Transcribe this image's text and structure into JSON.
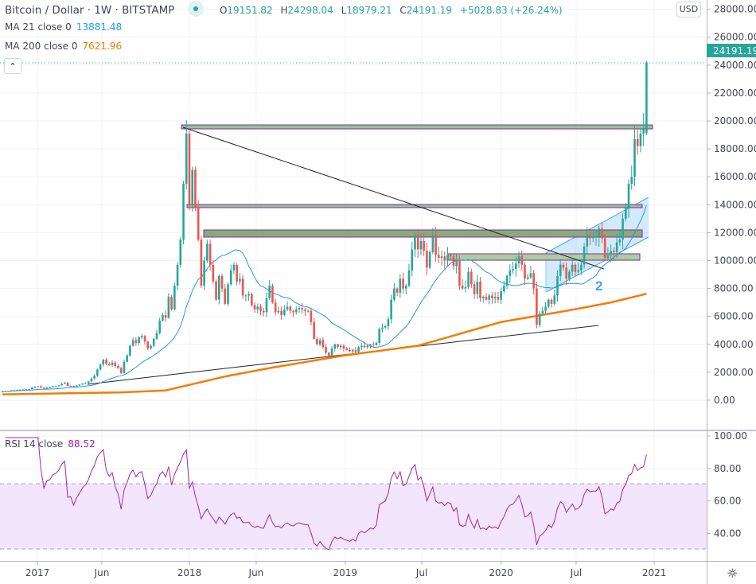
{
  "header": {
    "symbol": "Bitcoin / Dollar · 1W · BITSTAMP",
    "open_label": "O",
    "open": "19151.82",
    "high_label": "H",
    "high": "24298.04",
    "low_label": "L",
    "low": "18979.21",
    "close_label": "C",
    "close": "24191.19",
    "change": "+5028.83 (+26.24%)"
  },
  "indicators": {
    "ma21": {
      "label": "MA 21 close 0",
      "value": "13881.48",
      "color": "#2196f3"
    },
    "ma200": {
      "label": "MA 200 close 0",
      "value": "7621.96",
      "color": "#f57c00"
    },
    "rsi": {
      "label": "RSI 14 close",
      "value": "88.52",
      "color": "#9c27b0"
    }
  },
  "currency_button": "USD",
  "collapse_icon": "chevron-up-icon",
  "settings_icon": "gear-icon",
  "chart_data": {
    "type": "candlestick",
    "title": "Bitcoin / Dollar 1W BITSTAMP",
    "interval": "1W",
    "ylim": [
      -1000,
      29000
    ],
    "yticks": [
      "0.00",
      "2000.00",
      "4000.00",
      "6000.00",
      "8000.00",
      "10000.00",
      "12000.00",
      "14000.00",
      "16000.00",
      "18000.00",
      "20000.00",
      "22000.00",
      "24000.00",
      "26000.00",
      "28000.00"
    ],
    "last_price_label": "24191.19",
    "xticks": [
      {
        "label": "2017",
        "week": 11.8
      },
      {
        "label": "Jun",
        "week": 33.5
      },
      {
        "label": "2018",
        "week": 63
      },
      {
        "label": "Jun",
        "week": 85.5
      },
      {
        "label": "2019",
        "week": 115.5
      },
      {
        "label": "Jul",
        "week": 141.3
      },
      {
        "label": "2020",
        "week": 168
      },
      {
        "label": "Jul",
        "week": 193.3
      },
      {
        "label": "2021",
        "week": 219.6
      }
    ],
    "last_candle": {
      "open": 19151.82,
      "high": 24298.04,
      "low": 18979.21,
      "close": 24191.19
    },
    "closes": [
      620,
      640,
      650,
      700,
      715,
      740,
      745,
      770,
      780,
      790,
      900,
      960,
      1000,
      900,
      820,
      910,
      920,
      990,
      1010,
      1060,
      1180,
      1250,
      1020,
      1030,
      960,
      1050,
      1120,
      1200,
      1250,
      1350,
      1550,
      1750,
      2200,
      2550,
      2900,
      2600,
      2500,
      2700,
      2450,
      2300,
      1950,
      2750,
      3200,
      3900,
      4300,
      4100,
      4500,
      4600,
      4200,
      3700,
      3900,
      4400,
      4800,
      5700,
      6100,
      5900,
      7400,
      6500,
      8200,
      9700,
      11500,
      15500,
      19100,
      14000,
      16500,
      13800,
      11500,
      8200,
      10000,
      11200,
      9700,
      8500,
      7200,
      8900,
      8000,
      6900,
      8300,
      9300,
      9700,
      8500,
      8700,
      7500,
      7500,
      7600,
      6800,
      6500,
      6700,
      6400,
      6300,
      7300,
      8200,
      7000,
      6300,
      6400,
      6100,
      6500,
      6700,
      6400,
      6300,
      6500,
      6600,
      6500,
      6400,
      6400,
      5600,
      4400,
      4000,
      4300,
      3800,
      3400,
      3200,
      3700,
      4000,
      3800,
      3900,
      3700,
      3600,
      3500,
      3600,
      3450,
      3800,
      3900,
      3800,
      3900,
      4000,
      3950,
      4100,
      5100,
      5200,
      5300,
      5800,
      7200,
      8000,
      7700,
      8700,
      8000,
      8200,
      9300,
      10800,
      11800,
      10800,
      11400,
      10700,
      9500,
      10600,
      11800,
      10400,
      10200,
      10300,
      10000,
      10400,
      10300,
      9600,
      10000,
      8200,
      8000,
      8100,
      9200,
      8300,
      7600,
      8500,
      7300,
      7400,
      7200,
      7500,
      7300,
      7400,
      7200,
      7800,
      8200,
      8900,
      9300,
      9400,
      9800,
      10300,
      9700,
      8700,
      8800,
      9100,
      8000,
      5400,
      6200,
      6400,
      6700,
      7200,
      6900,
      7500,
      8900,
      9700,
      9500,
      8700,
      9200,
      9700,
      9200,
      9300,
      9700,
      11000,
      11800,
      11600,
      11700,
      11700,
      12300,
      11600,
      10200,
      10400,
      10700,
      10600,
      11300,
      11500,
      13000,
      13800,
      15500,
      16000,
      18700,
      18200,
      19100,
      19400,
      24191.19
    ],
    "ma200_points": [
      [
        0,
        420
      ],
      [
        40,
        560
      ],
      [
        55,
        700
      ],
      [
        63,
        1100
      ],
      [
        75,
        1700
      ],
      [
        90,
        2300
      ],
      [
        115,
        3200
      ],
      [
        140,
        3900
      ],
      [
        168,
        5600
      ],
      [
        190,
        6400
      ],
      [
        205,
        7000
      ],
      [
        217,
        7621.96
      ]
    ],
    "rsi": {
      "period": 14,
      "ylim": [
        20,
        100
      ],
      "yticks": [
        "40.00",
        "60.00",
        "80.00",
        "100.00"
      ],
      "bands": [
        30,
        70
      ],
      "last": 88.52
    },
    "annotations": {
      "channel_label": "2"
    }
  }
}
